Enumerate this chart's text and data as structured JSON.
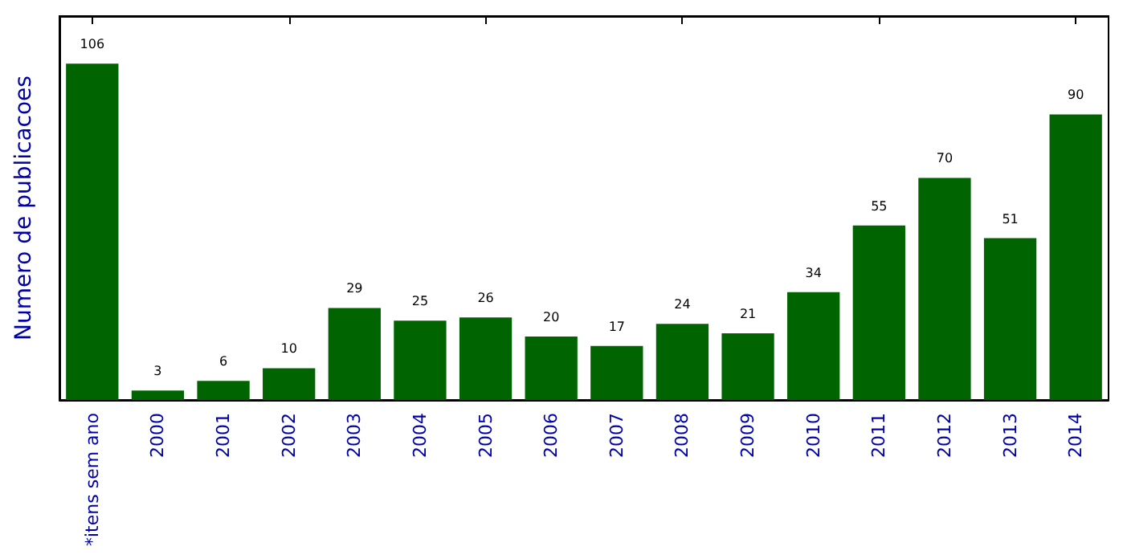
{
  "chart_data": {
    "type": "bar",
    "ylabel": "Numero de publicacoes",
    "categories": [
      "*itens sem ano",
      "2000",
      "2001",
      "2002",
      "2003",
      "2004",
      "2005",
      "2006",
      "2007",
      "2008",
      "2009",
      "2010",
      "2011",
      "2012",
      "2013",
      "2014"
    ],
    "values": [
      106,
      3,
      6,
      10,
      29,
      25,
      26,
      20,
      17,
      24,
      21,
      34,
      55,
      70,
      51,
      90
    ],
    "color": "#006400",
    "ylim": [
      0,
      121
    ],
    "data_labels": true,
    "grid": false,
    "tick_labels": "x"
  }
}
